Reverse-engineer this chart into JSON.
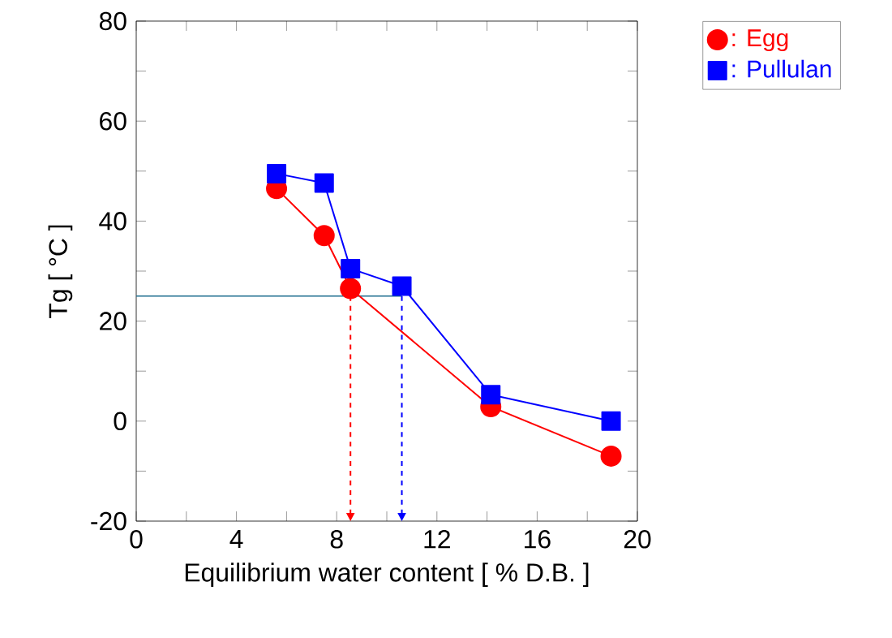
{
  "chart_data": {
    "type": "line",
    "xlabel": "Equilibrium water content [ % D.B. ]",
    "ylabel": "Tg [ °C ]",
    "xlim": [
      0,
      20
    ],
    "xticks": [
      0,
      4,
      8,
      12,
      16,
      20
    ],
    "ylim": [
      -20,
      80
    ],
    "yticks": [
      -20,
      0,
      20,
      40,
      60,
      80
    ],
    "legend": "top right",
    "grid": false,
    "series": [
      {
        "name": ": Egg",
        "color": "#ff0000",
        "marker": "circle",
        "x": [
          5.6,
          7.5,
          8.55,
          14.15,
          18.95
        ],
        "values": [
          46.5,
          37.1,
          26.5,
          2.9,
          -7.0
        ]
      },
      {
        "name": ": Pullulan",
        "color": "#0000ff",
        "marker": "square",
        "x": [
          5.6,
          7.5,
          8.55,
          10.6,
          14.15,
          18.95
        ],
        "values": [
          49.5,
          47.6,
          30.5,
          27.0,
          5.3,
          0
        ]
      }
    ],
    "ref_lines": [
      {
        "axis": "y",
        "value": 25,
        "color": "#1f6f8f",
        "line_style": "solid"
      },
      {
        "axis": "x",
        "value": 8.55,
        "color": "#ff0000",
        "line_style": "dashed"
      },
      {
        "axis": "x",
        "value": 10.6,
        "color": "#0000ff",
        "line_style": "dashed"
      }
    ]
  }
}
